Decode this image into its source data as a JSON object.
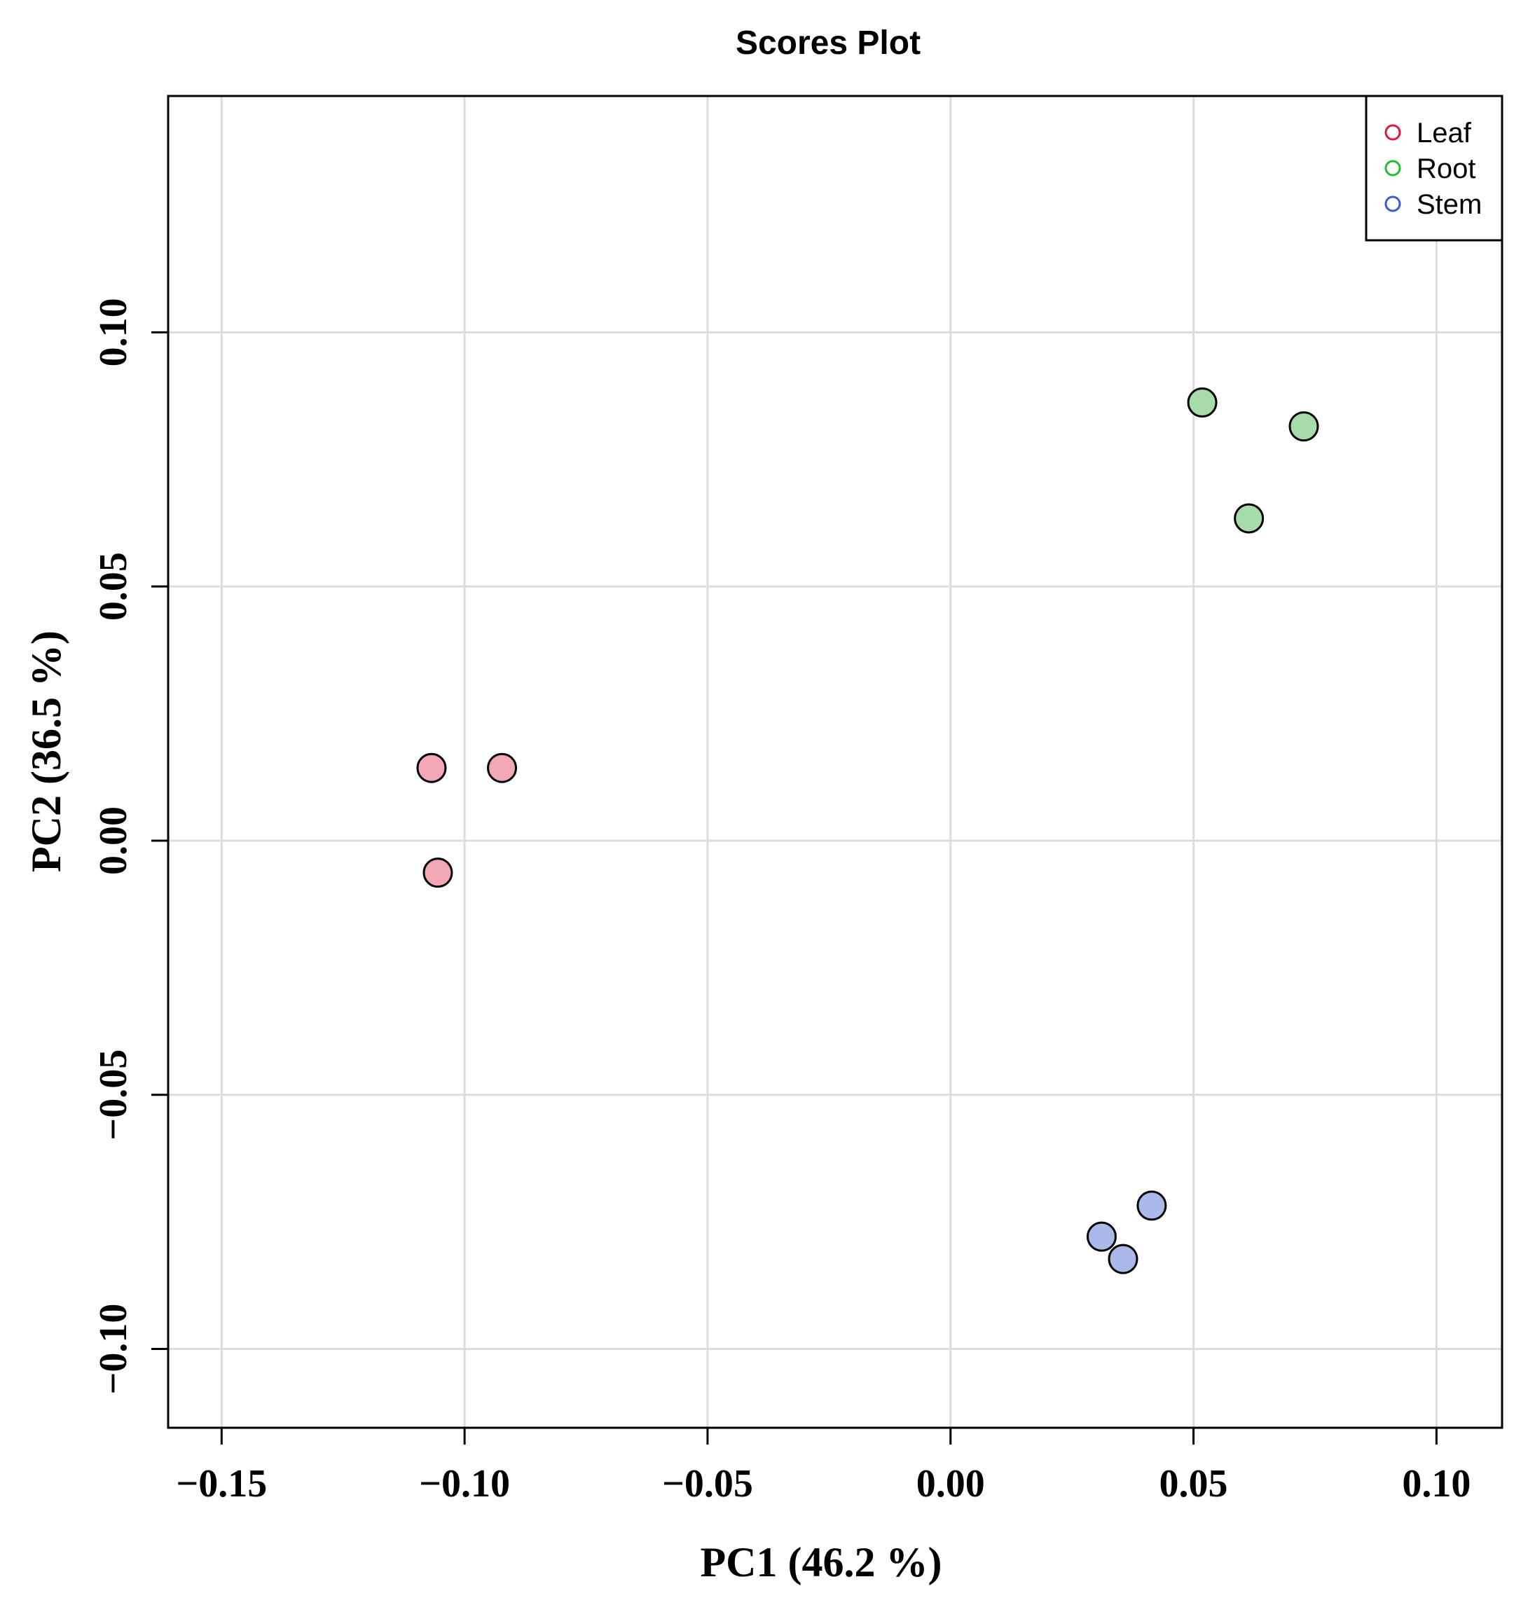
{
  "chart_data": {
    "type": "scatter",
    "title": "Scores Plot",
    "xlabel": "PC1 (46.2 %)",
    "ylabel": "PC2 (36.5 %)",
    "xlim": [
      -0.161,
      0.1135
    ],
    "ylim": [
      -0.1155,
      0.1465
    ],
    "xticks": [
      -0.15,
      -0.1,
      -0.05,
      0.0,
      0.05,
      0.1
    ],
    "xtick_labels": [
      "−0.15",
      "−0.10",
      "−0.05",
      "0.00",
      "0.05",
      "0.10"
    ],
    "yticks": [
      -0.1,
      -0.05,
      0.0,
      0.05,
      0.1
    ],
    "ytick_labels": [
      "−0.10",
      "−0.05",
      "0.00",
      "0.05",
      "0.10"
    ],
    "grid": true,
    "legend_position": "top-right",
    "series": [
      {
        "name": "Leaf",
        "legend_color": "#e0183c",
        "fill_color": "#f2a7b5",
        "points": [
          {
            "x": -0.1068,
            "y": 0.0143
          },
          {
            "x": -0.0923,
            "y": 0.0143
          },
          {
            "x": -0.1055,
            "y": -0.0063
          }
        ]
      },
      {
        "name": "Root",
        "legend_color": "#2fb82f",
        "fill_color": "#a8dbaa",
        "points": [
          {
            "x": 0.0518,
            "y": 0.0862
          },
          {
            "x": 0.0727,
            "y": 0.0815
          },
          {
            "x": 0.0614,
            "y": 0.0634
          }
        ]
      },
      {
        "name": "Stem",
        "legend_color": "#3b5bdb",
        "fill_color": "#aab8ea",
        "points": [
          {
            "x": 0.0414,
            "y": -0.0718
          },
          {
            "x": 0.0311,
            "y": -0.0779
          },
          {
            "x": 0.0355,
            "y": -0.0823
          }
        ]
      }
    ]
  }
}
